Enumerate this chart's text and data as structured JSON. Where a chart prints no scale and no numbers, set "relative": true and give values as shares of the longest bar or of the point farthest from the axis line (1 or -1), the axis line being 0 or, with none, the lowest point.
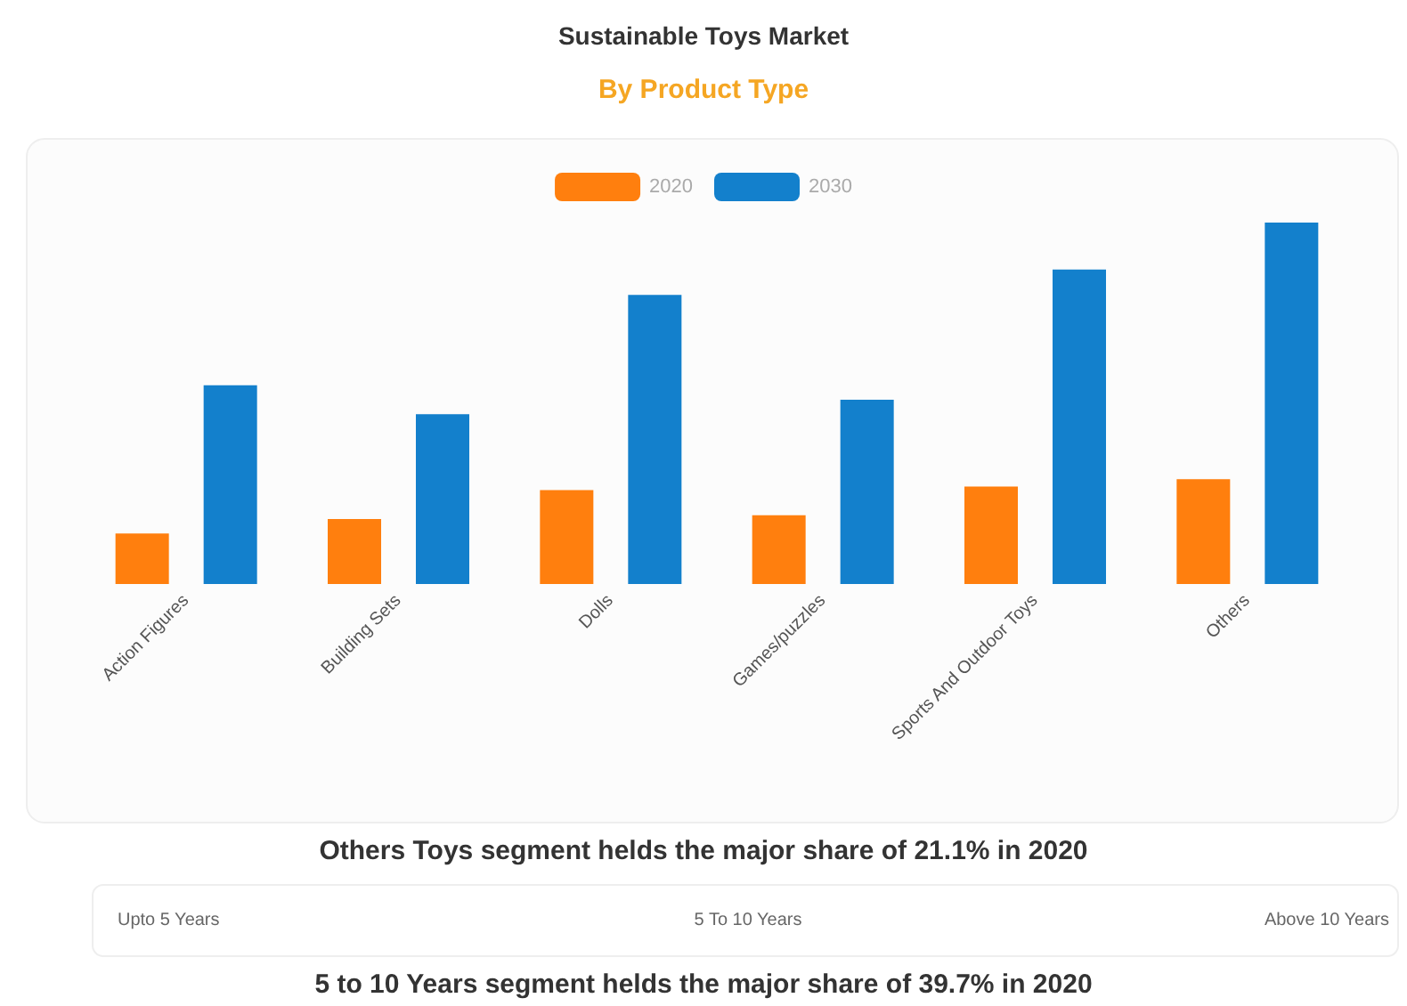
{
  "chart_data": {
    "type": "bar",
    "title": "Sustainable Toys Market",
    "subtitle": "By Product Type",
    "relative": true,
    "legend": "top",
    "categories": [
      "Action Figures",
      "Building Sets",
      "Dolls",
      "Games/puzzles",
      "Sports And Outdoor Toys",
      "Others"
    ],
    "series": [
      {
        "name": "2020",
        "color": "#ff7f0e",
        "values": [
          0.14,
          0.18,
          0.26,
          0.19,
          0.27,
          0.29
        ]
      },
      {
        "name": "2030",
        "color": "#1380cc",
        "values": [
          0.55,
          0.47,
          0.8,
          0.51,
          0.87,
          1
        ]
      }
    ],
    "annotations": [
      "Others Toys segment helds the major share of 21.1% in 2020",
      "Upto 5 Years",
      "5 To 10 Years",
      "Above 10 Years",
      "5 to 10 Years segment helds the major share of 39.7% in 2020"
    ]
  }
}
